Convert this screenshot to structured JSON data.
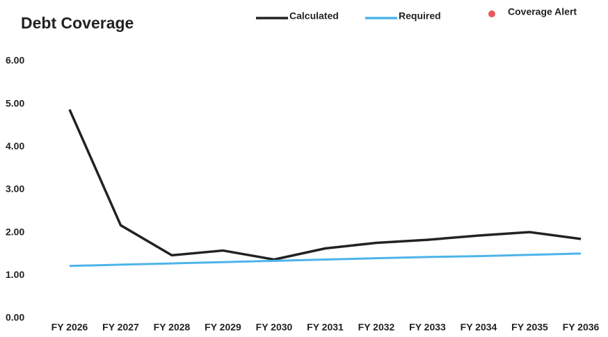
{
  "chart_data": {
    "type": "line",
    "title": "Debt Coverage",
    "categories": [
      "FY 2026",
      "FY 2027",
      "FY 2028",
      "FY 2029",
      "FY 2030",
      "FY 2031",
      "FY 2032",
      "FY 2033",
      "FY 2034",
      "FY 2035",
      "FY 2036"
    ],
    "series": [
      {
        "name": "Calculated",
        "color": "#222222",
        "values": [
          4.87,
          2.17,
          1.47,
          1.58,
          1.37,
          1.63,
          1.76,
          1.83,
          1.93,
          2.01,
          1.85
        ]
      },
      {
        "name": "Required",
        "color": "#4db3ea",
        "values": [
          1.22,
          1.25,
          1.28,
          1.31,
          1.34,
          1.37,
          1.4,
          1.43,
          1.45,
          1.48,
          1.51
        ]
      },
      {
        "name": "Coverage Alert",
        "color": "#e8575a",
        "marker": "dot",
        "values": [
          null,
          null,
          null,
          null,
          null,
          null,
          null,
          null,
          null,
          null,
          null
        ]
      }
    ],
    "ylim": [
      0,
      6
    ],
    "yticks": [
      {
        "value": 0,
        "label": "0.00"
      },
      {
        "value": 1,
        "label": "1.00"
      },
      {
        "value": 2,
        "label": "2.00"
      },
      {
        "value": 3,
        "label": "3.00"
      },
      {
        "value": 4,
        "label": "4.00"
      },
      {
        "value": 5,
        "label": "5.00"
      },
      {
        "value": 6,
        "label": "6.00"
      }
    ],
    "grid": false
  }
}
